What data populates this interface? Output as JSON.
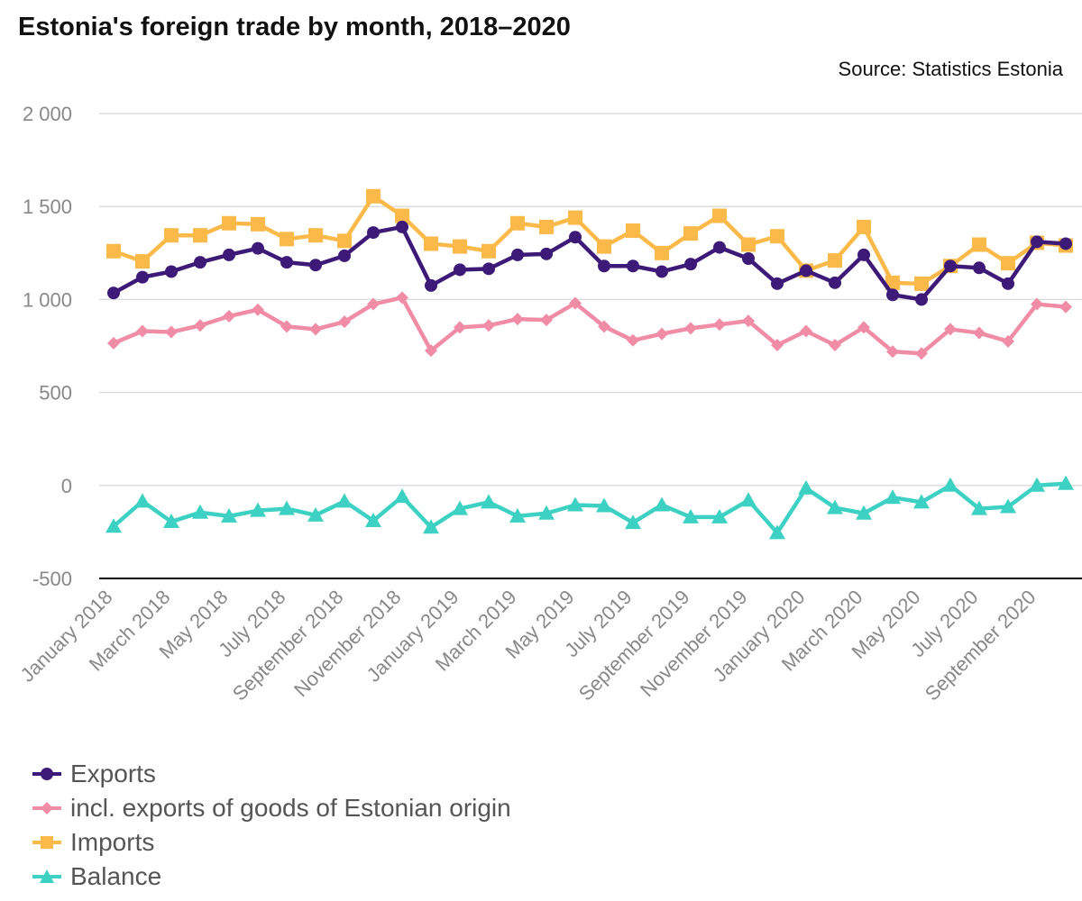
{
  "title": "Estonia's foreign trade by month, 2018–2020",
  "source": "Source: Statistics Estonia",
  "chart_data": {
    "type": "line",
    "categories": [
      "January 2018",
      "February 2018",
      "March 2018",
      "April 2018",
      "May 2018",
      "June 2018",
      "July 2018",
      "August 2018",
      "September 2018",
      "October 2018",
      "November 2018",
      "December 2018",
      "January 2019",
      "February 2019",
      "March 2019",
      "April 2019",
      "May 2019",
      "June 2019",
      "July 2019",
      "August 2019",
      "September 2019",
      "October 2019",
      "November 2019",
      "December 2019",
      "January 2020",
      "February 2020",
      "March 2020",
      "April 2020",
      "May 2020",
      "June 2020",
      "July 2020",
      "August 2020",
      "September 2020",
      "October 2020"
    ],
    "x_tick_labels": [
      "January 2018",
      "March 2018",
      "May 2018",
      "July 2018",
      "September 2018",
      "November 2018",
      "January 2019",
      "March 2019",
      "May 2019",
      "July 2019",
      "September 2019",
      "November 2019",
      "January 2020",
      "March 2020",
      "May 2020",
      "July 2020",
      "September 2020"
    ],
    "y_ticks": [
      -500,
      0,
      500,
      1000,
      1500,
      2000
    ],
    "y_tick_labels": [
      "-500",
      "0",
      "500",
      "1 000",
      "1 500",
      "2 000"
    ],
    "ylim": [
      -500,
      2000
    ],
    "grid": true,
    "legend_position": "bottom-left",
    "series": [
      {
        "name": "Exports",
        "color": "#3d1a78",
        "marker": "circle",
        "values": [
          1035,
          1120,
          1150,
          1200,
          1240,
          1275,
          1200,
          1185,
          1235,
          1360,
          1390,
          1075,
          1160,
          1165,
          1240,
          1245,
          1335,
          1180,
          1180,
          1150,
          1190,
          1280,
          1220,
          1085,
          1155,
          1090,
          1240,
          1025,
          1000,
          1180,
          1170,
          1085,
          1310,
          1300
        ]
      },
      {
        "name": "incl. exports of goods of Estonian origin",
        "color": "#f08ca5",
        "marker": "diamond",
        "values": [
          765,
          830,
          825,
          860,
          910,
          945,
          855,
          840,
          880,
          975,
          1010,
          725,
          850,
          860,
          895,
          890,
          980,
          855,
          780,
          815,
          845,
          865,
          885,
          755,
          830,
          755,
          850,
          720,
          710,
          840,
          820,
          775,
          975,
          960
        ]
      },
      {
        "name": "Imports",
        "color": "#fbb949",
        "marker": "square",
        "values": [
          1260,
          1205,
          1345,
          1345,
          1410,
          1405,
          1325,
          1345,
          1315,
          1555,
          1450,
          1300,
          1285,
          1260,
          1410,
          1390,
          1440,
          1285,
          1370,
          1250,
          1355,
          1450,
          1295,
          1340,
          1155,
          1210,
          1390,
          1090,
          1085,
          1180,
          1295,
          1195,
          1305,
          1290
        ]
      },
      {
        "name": "Balance",
        "color": "#3dd1c3",
        "marker": "triangle",
        "values": [
          -220,
          -85,
          -195,
          -145,
          -165,
          -135,
          -125,
          -160,
          -85,
          -190,
          -60,
          -225,
          -125,
          -90,
          -165,
          -150,
          -105,
          -110,
          -200,
          -105,
          -170,
          -170,
          -80,
          -255,
          -15,
          -120,
          -150,
          -65,
          -90,
          0,
          -125,
          -115,
          0,
          10
        ]
      }
    ]
  }
}
